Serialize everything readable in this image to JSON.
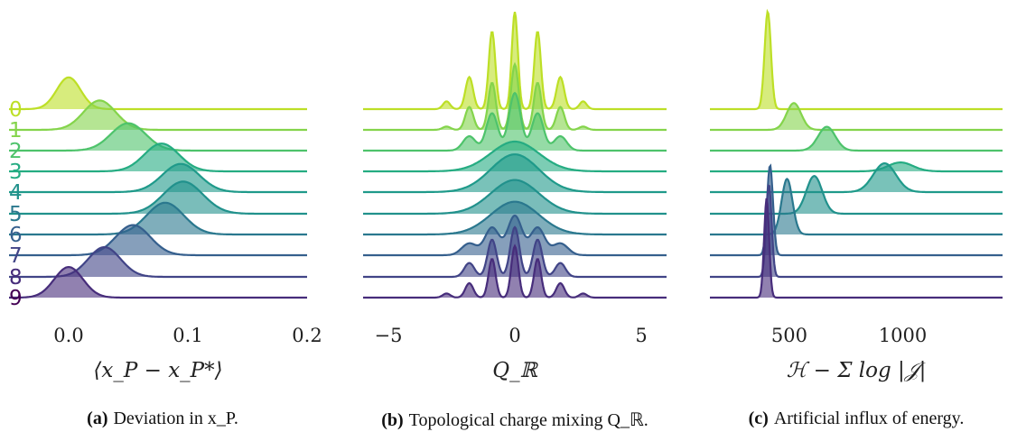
{
  "chart_data": [
    {
      "type": "ridgeline",
      "panel_id": "a",
      "xlabel": "⟨x_P − x_P*⟩",
      "xlim": [
        -0.05,
        0.2
      ],
      "xticks": [
        {
          "value": 0.0,
          "label": "0.0"
        },
        {
          "value": 0.1,
          "label": "0.1"
        },
        {
          "value": 0.2,
          "label": "0.2"
        }
      ],
      "row_labels": [
        "0",
        "1",
        "2",
        "3",
        "4",
        "5",
        "6",
        "7",
        "8",
        "9"
      ],
      "row_colors": [
        "#bddf26",
        "#84d44b",
        "#4ec36b",
        "#25ac82",
        "#1f9a8a",
        "#21918c",
        "#2a788e",
        "#355f8d",
        "#414487",
        "#472d7b"
      ],
      "label_row_colors": [
        "#bddf26",
        "#84d44b",
        "#4ec36b",
        "#25ac82",
        "#21918c",
        "#2a788e",
        "#355f8d",
        "#414487",
        "#472d7b",
        "#440154"
      ],
      "series": [
        {
          "name": "0",
          "components": [
            {
              "mu": 0.0,
              "sigma": 0.01,
              "w": 1
            }
          ],
          "peak": 1.6
        },
        {
          "name": "1",
          "components": [
            {
              "mu": 0.026,
              "sigma": 0.0135,
              "w": 1
            }
          ],
          "peak": 1.48
        },
        {
          "name": "2",
          "components": [
            {
              "mu": 0.05,
              "sigma": 0.0145,
              "w": 1
            }
          ],
          "peak": 1.38
        },
        {
          "name": "3",
          "components": [
            {
              "mu": 0.078,
              "sigma": 0.0145,
              "w": 1
            }
          ],
          "peak": 1.4
        },
        {
          "name": "4",
          "components": [
            {
              "mu": 0.094,
              "sigma": 0.0155,
              "w": 1
            }
          ],
          "peak": 1.42
        },
        {
          "name": "5",
          "components": [
            {
              "mu": 0.096,
              "sigma": 0.0165,
              "w": 1
            }
          ],
          "peak": 1.62
        },
        {
          "name": "6",
          "components": [
            {
              "mu": 0.081,
              "sigma": 0.0155,
              "w": 1
            }
          ],
          "peak": 1.6
        },
        {
          "name": "7",
          "components": [
            {
              "mu": 0.054,
              "sigma": 0.0145,
              "w": 1
            }
          ],
          "peak": 1.52
        },
        {
          "name": "8",
          "components": [
            {
              "mu": 0.03,
              "sigma": 0.0135,
              "w": 1
            }
          ],
          "peak": 1.5
        },
        {
          "name": "9",
          "components": [
            {
              "mu": 0.0,
              "sigma": 0.012,
              "w": 1
            }
          ],
          "peak": 1.54
        }
      ]
    },
    {
      "type": "ridgeline",
      "panel_id": "b",
      "xlabel": "Q_ℝ",
      "xlim": [
        -6,
        6
      ],
      "xticks": [
        {
          "value": -5,
          "label": "−5"
        },
        {
          "value": 0,
          "label": "0"
        },
        {
          "value": 5,
          "label": "5"
        }
      ],
      "row_colors": [
        "#bddf26",
        "#84d44b",
        "#4ec36b",
        "#25ac82",
        "#1f9a8a",
        "#21918c",
        "#2a788e",
        "#355f8d",
        "#414487",
        "#472d7b"
      ],
      "series": [
        {
          "name": "0",
          "components": [
            {
              "mu": -2.7,
              "sigma": 0.14,
              "w": 0.08
            },
            {
              "mu": -1.8,
              "sigma": 0.15,
              "w": 0.33
            },
            {
              "mu": -0.9,
              "sigma": 0.13,
              "w": 0.8
            },
            {
              "mu": 0,
              "sigma": 0.12,
              "w": 1.0
            },
            {
              "mu": 0.9,
              "sigma": 0.13,
              "w": 0.8
            },
            {
              "mu": 1.8,
              "sigma": 0.15,
              "w": 0.33
            },
            {
              "mu": 2.7,
              "sigma": 0.14,
              "w": 0.08
            }
          ],
          "peak": 4.9
        },
        {
          "name": "1",
          "components": [
            {
              "mu": -2.7,
              "sigma": 0.16,
              "w": 0.05
            },
            {
              "mu": -1.8,
              "sigma": 0.16,
              "w": 0.35
            },
            {
              "mu": -0.9,
              "sigma": 0.15,
              "w": 0.72
            },
            {
              "mu": 0,
              "sigma": 0.15,
              "w": 1.0
            },
            {
              "mu": 0.9,
              "sigma": 0.15,
              "w": 0.72
            },
            {
              "mu": 1.8,
              "sigma": 0.16,
              "w": 0.35
            },
            {
              "mu": 2.7,
              "sigma": 0.16,
              "w": 0.05
            }
          ],
          "peak": 3.3
        },
        {
          "name": "2",
          "components": [
            {
              "mu": -1.8,
              "sigma": 0.25,
              "w": 0.25
            },
            {
              "mu": -0.9,
              "sigma": 0.23,
              "w": 0.65
            },
            {
              "mu": 0,
              "sigma": 0.23,
              "w": 1.0
            },
            {
              "mu": 0.9,
              "sigma": 0.23,
              "w": 0.65
            },
            {
              "mu": 1.8,
              "sigma": 0.25,
              "w": 0.25
            }
          ],
          "peak": 2.9
        },
        {
          "name": "3",
          "components": [
            {
              "mu": 0,
              "sigma": 0.95,
              "w": 1
            }
          ],
          "peak": 1.5
        },
        {
          "name": "4",
          "components": [
            {
              "mu": 0,
              "sigma": 0.95,
              "w": 1
            }
          ],
          "peak": 1.9
        },
        {
          "name": "5",
          "components": [
            {
              "mu": 0,
              "sigma": 0.95,
              "w": 1
            }
          ],
          "peak": 1.7
        },
        {
          "name": "6",
          "components": [
            {
              "mu": 0,
              "sigma": 0.95,
              "w": 1
            }
          ],
          "peak": 1.65
        },
        {
          "name": "7",
          "components": [
            {
              "mu": -1.8,
              "sigma": 0.3,
              "w": 0.3
            },
            {
              "mu": -0.9,
              "sigma": 0.28,
              "w": 0.7
            },
            {
              "mu": 0,
              "sigma": 0.28,
              "w": 1.0
            },
            {
              "mu": 0.9,
              "sigma": 0.28,
              "w": 0.7
            },
            {
              "mu": 1.8,
              "sigma": 0.3,
              "w": 0.3
            }
          ],
          "peak": 2.0
        },
        {
          "name": "8",
          "components": [
            {
              "mu": -1.8,
              "sigma": 0.2,
              "w": 0.28
            },
            {
              "mu": -0.9,
              "sigma": 0.18,
              "w": 0.75
            },
            {
              "mu": 0,
              "sigma": 0.18,
              "w": 1.0
            },
            {
              "mu": 0.9,
              "sigma": 0.18,
              "w": 0.75
            },
            {
              "mu": 1.8,
              "sigma": 0.2,
              "w": 0.28
            }
          ],
          "peak": 2.5
        },
        {
          "name": "9",
          "components": [
            {
              "mu": -2.7,
              "sigma": 0.15,
              "w": 0.08
            },
            {
              "mu": -1.8,
              "sigma": 0.16,
              "w": 0.28
            },
            {
              "mu": -0.9,
              "sigma": 0.14,
              "w": 0.75
            },
            {
              "mu": 0,
              "sigma": 0.14,
              "w": 1.0
            },
            {
              "mu": 0.9,
              "sigma": 0.14,
              "w": 0.75
            },
            {
              "mu": 1.8,
              "sigma": 0.16,
              "w": 0.28
            },
            {
              "mu": 2.7,
              "sigma": 0.15,
              "w": 0.08
            }
          ],
          "peak": 2.6
        }
      ]
    },
    {
      "type": "ridgeline",
      "panel_id": "c",
      "xlabel": "ℋ − Σ log |𝒥|",
      "xlim": [
        150,
        1440
      ],
      "xticks": [
        {
          "value": 500,
          "label": "500"
        },
        {
          "value": 1000,
          "label": "1000"
        }
      ],
      "row_colors": [
        "#bddf26",
        "#84d44b",
        "#4ec36b",
        "#25ac82",
        "#1f9a8a",
        "#21918c",
        "#2a788e",
        "#355f8d",
        "#414487",
        "#472d7b"
      ],
      "series": [
        {
          "name": "0",
          "components": [
            {
              "mu": 405,
              "sigma": 14,
              "w": 1
            }
          ],
          "peak": 4.9
        },
        {
          "name": "1",
          "components": [
            {
              "mu": 520,
              "sigma": 32,
              "w": 1
            }
          ],
          "peak": 1.35
        },
        {
          "name": "2",
          "components": [
            {
              "mu": 665,
              "sigma": 38,
              "w": 1
            }
          ],
          "peak": 1.2
        },
        {
          "name": "3",
          "components": [
            {
              "mu": 990,
              "sigma": 55,
              "w": 1
            }
          ],
          "peak": 0.45
        },
        {
          "name": "4",
          "components": [
            {
              "mu": 920,
              "sigma": 50,
              "w": 1
            }
          ],
          "peak": 1.45
        },
        {
          "name": "5",
          "components": [
            {
              "mu": 610,
              "sigma": 35,
              "w": 1
            }
          ],
          "peak": 1.9
        },
        {
          "name": "6",
          "components": [
            {
              "mu": 490,
              "sigma": 24,
              "w": 1
            }
          ],
          "peak": 2.8
        },
        {
          "name": "7",
          "components": [
            {
              "mu": 415,
              "sigma": 13,
              "w": 1
            }
          ],
          "peak": 4.5
        },
        {
          "name": "8",
          "components": [
            {
              "mu": 410,
              "sigma": 12,
              "w": 1
            }
          ],
          "peak": 4.6
        },
        {
          "name": "9",
          "components": [
            {
              "mu": 400,
              "sigma": 11,
              "w": 1
            }
          ],
          "peak": 5.0
        }
      ]
    }
  ],
  "captions": [
    {
      "tag": "(a)",
      "text": "Deviation in x_P."
    },
    {
      "tag": "(b)",
      "text": "Topological charge mixing Q_ℝ."
    },
    {
      "tag": "(c)",
      "text": "Artificial influx of energy."
    }
  ]
}
